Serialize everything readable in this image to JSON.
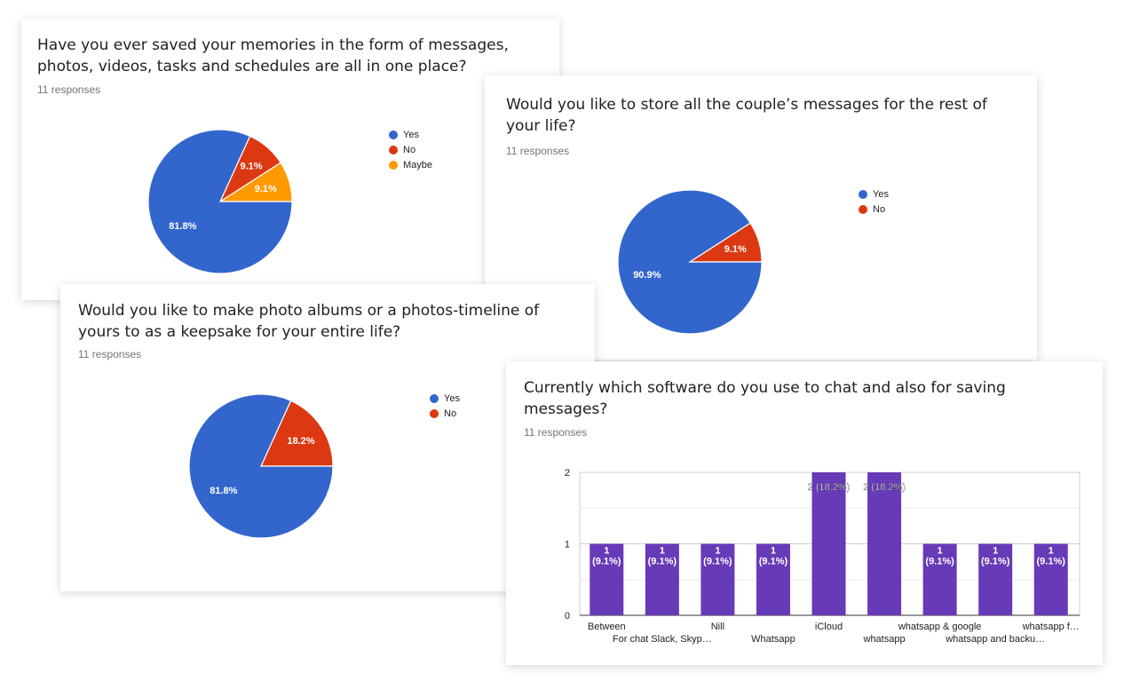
{
  "cards": [
    {
      "question": "Have you ever saved your memories in the form of messages, photos, videos, tasks and schedules are all in one place?",
      "responses": "11 responses"
    },
    {
      "question": "Would you like to store all the couple’s messages for the rest of your life?",
      "responses": "11 responses"
    },
    {
      "question": "Would you like to make photo albums or a photos-timeline of yours to as a keepsake for your entire life?",
      "responses": "11 responses"
    },
    {
      "question": "Currently which software do you use to chat and also for saving messages?",
      "responses": "11 responses"
    }
  ],
  "colors": {
    "yes": "#3366cc",
    "no": "#dc3912",
    "maybe": "#ff9900",
    "bar": "#673ab7"
  },
  "chart_data": [
    {
      "type": "pie",
      "title": "Have you ever saved your memories in the form of messages, photos, videos, tasks and schedules are all in one place?",
      "slices": [
        {
          "label": "Yes",
          "value": 81.8,
          "display": "81.8%",
          "color": "#3366cc"
        },
        {
          "label": "No",
          "value": 9.1,
          "display": "9.1%",
          "color": "#dc3912"
        },
        {
          "label": "Maybe",
          "value": 9.1,
          "display": "9.1%",
          "color": "#ff9900"
        }
      ],
      "legend": "right"
    },
    {
      "type": "pie",
      "title": "Would you like to store all the couple’s messages for the rest of your life?",
      "slices": [
        {
          "label": "Yes",
          "value": 90.9,
          "display": "90.9%",
          "color": "#3366cc"
        },
        {
          "label": "No",
          "value": 9.1,
          "display": "9.1%",
          "color": "#dc3912"
        }
      ],
      "legend": "right"
    },
    {
      "type": "pie",
      "title": "Would you like to make photo albums or a photos-timeline of yours to as a keepsake for your entire life?",
      "slices": [
        {
          "label": "Yes",
          "value": 81.8,
          "display": "81.8%",
          "color": "#3366cc"
        },
        {
          "label": "No",
          "value": 18.2,
          "display": "18.2%",
          "color": "#dc3912"
        }
      ],
      "legend": "right"
    },
    {
      "type": "bar",
      "title": "Currently which software do you use to chat and also for saving messages?",
      "categories": [
        "Between",
        "For chat Slack, Skyp…",
        "Nill",
        "Whatsapp",
        "iCloud",
        "whatsapp",
        "whatsapp & google",
        "whatsapp and backu…",
        "whatsapp f…"
      ],
      "values": [
        1,
        1,
        1,
        1,
        2,
        2,
        1,
        1,
        1
      ],
      "value_labels": [
        "1 (9.1%)",
        "1 (9.1%)",
        "1 (9.1%)",
        "1 (9.1%)",
        "2 (18.2%)",
        "2 (18.2%)",
        "1 (9.1%)",
        "1 (9.1%)",
        "1 (9.1%)"
      ],
      "y_ticks": [
        "0",
        "1",
        "2"
      ],
      "ylim": [
        0,
        2
      ],
      "grid": true,
      "color": "#673ab7"
    }
  ]
}
